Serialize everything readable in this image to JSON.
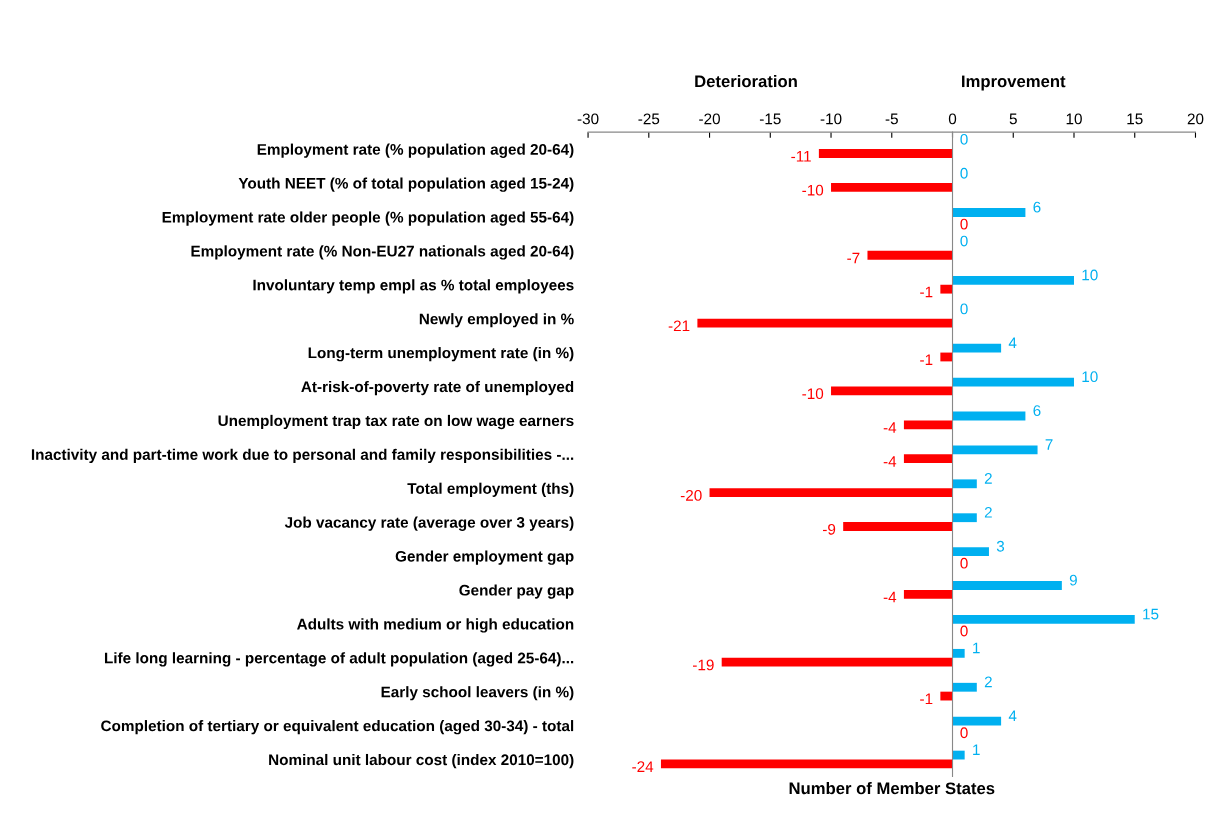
{
  "chart_data": {
    "type": "bar",
    "orientation": "horizontal",
    "categories": [
      "Employment rate (% population aged 20-64)",
      "Youth NEET (% of total population aged 15-24)",
      "Employment rate older people (% population aged 55-64)",
      "Employment rate (% Non-EU27 nationals aged 20-64)",
      "Involuntary temp empl as % total employees",
      "Newly employed in %",
      "Long-term unemployment rate (in %)",
      "At-risk-of-poverty rate of unemployed",
      "Unemployment trap tax rate on low wage earners",
      "Inactivity and part-time work due to personal and family responsibilities -...",
      "Total employment (ths)",
      "Job vacancy rate (average over 3 years)",
      "Gender employment gap",
      "Gender pay gap",
      "Adults with medium or high education",
      "Life long learning - percentage of adult population (aged 25-64)...",
      "Early school leavers (in %)",
      "Completion of tertiary or equivalent education (aged 30-34) - total",
      "Nominal unit labour cost (index 2010=100)"
    ],
    "series": [
      {
        "color": "#00b0f0",
        "values": [
          0,
          0,
          6,
          0,
          10,
          0,
          4,
          10,
          6,
          7,
          2,
          2,
          3,
          9,
          15,
          1,
          2,
          4,
          1
        ]
      },
      {
        "color": "#ff0000",
        "values": [
          -11,
          -10,
          0,
          -7,
          -1,
          -21,
          -1,
          -10,
          -4,
          -4,
          -20,
          -9,
          0,
          -4,
          0,
          -19,
          -1,
          0,
          -24
        ]
      }
    ],
    "xlim": [
      -30,
      20
    ],
    "xticks": [
      -30,
      -25,
      -20,
      -15,
      -10,
      -5,
      0,
      5,
      10,
      15,
      20
    ],
    "xlabel": "Number of Member States",
    "annotations": [
      "Deterioration",
      "Improvement"
    ],
    "data_labels": true,
    "legend": false
  }
}
